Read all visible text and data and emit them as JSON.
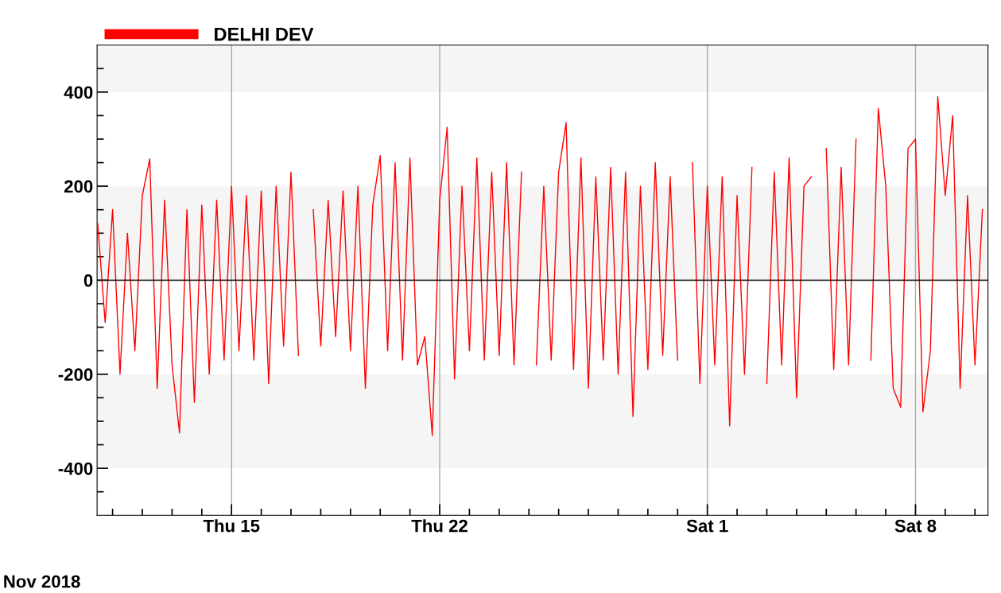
{
  "chart_data": {
    "type": "line",
    "x": [
      "2018-11-10T12:00",
      "2018-11-10T18:00",
      "2018-11-11T00:00",
      "2018-11-11T06:00",
      "2018-11-11T12:00",
      "2018-11-11T18:00",
      "2018-11-12T00:00",
      "2018-11-12T06:00",
      "2018-11-12T12:00",
      "2018-11-12T18:00",
      "2018-11-13T00:00",
      "2018-11-13T06:00",
      "2018-11-13T12:00",
      "2018-11-13T18:00",
      "2018-11-14T00:00",
      "2018-11-14T06:00",
      "2018-11-14T12:00",
      "2018-11-14T18:00",
      "2018-11-15T00:00",
      "2018-11-15T06:00",
      "2018-11-15T12:00",
      "2018-11-15T18:00",
      "2018-11-16T00:00",
      "2018-11-16T06:00",
      "2018-11-16T12:00",
      "2018-11-16T18:00",
      "2018-11-17T00:00",
      "2018-11-17T06:00",
      "2018-11-17T12:00",
      "2018-11-17T18:00",
      "2018-11-18T00:00",
      "2018-11-18T06:00",
      "2018-11-18T12:00",
      "2018-11-18T18:00",
      "2018-11-19T00:00",
      "2018-11-19T06:00",
      "2018-11-19T12:00",
      "2018-11-19T18:00",
      "2018-11-20T00:00",
      "2018-11-20T06:00",
      "2018-11-20T12:00",
      "2018-11-20T18:00",
      "2018-11-21T00:00",
      "2018-11-21T06:00",
      "2018-11-21T12:00",
      "2018-11-21T18:00",
      "2018-11-22T00:00",
      "2018-11-22T06:00",
      "2018-11-22T12:00",
      "2018-11-22T18:00",
      "2018-11-23T00:00",
      "2018-11-23T06:00",
      "2018-11-23T12:00",
      "2018-11-23T18:00",
      "2018-11-24T00:00",
      "2018-11-24T06:00",
      "2018-11-24T12:00",
      "2018-11-24T18:00",
      "2018-11-25T00:00",
      "2018-11-25T06:00",
      "2018-11-25T12:00",
      "2018-11-25T18:00",
      "2018-11-26T00:00",
      "2018-11-26T06:00",
      "2018-11-26T12:00",
      "2018-11-26T18:00",
      "2018-11-27T00:00",
      "2018-11-27T06:00",
      "2018-11-27T12:00",
      "2018-11-27T18:00",
      "2018-11-28T00:00",
      "2018-11-28T06:00",
      "2018-11-28T12:00",
      "2018-11-28T18:00",
      "2018-11-29T00:00",
      "2018-11-29T06:00",
      "2018-11-29T12:00",
      "2018-11-29T18:00",
      "2018-11-30T00:00",
      "2018-11-30T06:00",
      "2018-11-30T12:00",
      "2018-11-30T18:00",
      "2018-12-01T00:00",
      "2018-12-01T06:00",
      "2018-12-01T12:00",
      "2018-12-01T18:00",
      "2018-12-02T00:00",
      "2018-12-02T06:00",
      "2018-12-02T12:00",
      "2018-12-02T18:00",
      "2018-12-03T00:00",
      "2018-12-03T06:00",
      "2018-12-03T12:00",
      "2018-12-03T18:00",
      "2018-12-04T00:00",
      "2018-12-04T06:00",
      "2018-12-04T12:00",
      "2018-12-04T18:00",
      "2018-12-05T00:00",
      "2018-12-05T06:00",
      "2018-12-05T12:00",
      "2018-12-05T18:00",
      "2018-12-06T00:00",
      "2018-12-06T06:00",
      "2018-12-06T12:00",
      "2018-12-06T18:00",
      "2018-12-07T00:00",
      "2018-12-07T06:00",
      "2018-12-07T12:00",
      "2018-12-07T18:00",
      "2018-12-08T00:00",
      "2018-12-08T06:00",
      "2018-12-08T12:00",
      "2018-12-08T18:00",
      "2018-12-09T00:00",
      "2018-12-09T06:00",
      "2018-12-09T12:00",
      "2018-12-09T18:00",
      "2018-12-10T00:00",
      "2018-12-10T06:00"
    ],
    "series": [
      {
        "name": "DELHI DEV",
        "color": "#ff0000",
        "values": [
          120,
          -90,
          150,
          -200,
          100,
          -150,
          180,
          258,
          -230,
          170,
          -180,
          -325,
          150,
          -260,
          160,
          -200,
          170,
          -170,
          200,
          -150,
          180,
          -170,
          190,
          -220,
          200,
          -140,
          230,
          -160,
          null,
          150,
          -140,
          170,
          -120,
          190,
          -150,
          200,
          -230,
          160,
          265,
          -150,
          250,
          -170,
          260,
          -180,
          -120,
          -330,
          170,
          325,
          -210,
          200,
          -150,
          260,
          -170,
          230,
          -160,
          250,
          -180,
          230,
          null,
          -180,
          200,
          -170,
          230,
          335,
          -190,
          260,
          -230,
          220,
          -170,
          240,
          -200,
          230,
          -290,
          200,
          -190,
          250,
          -160,
          220,
          -170,
          null,
          250,
          -220,
          200,
          -180,
          220,
          -310,
          180,
          -200,
          240,
          null,
          -220,
          230,
          -180,
          260,
          -250,
          200,
          220,
          null,
          280,
          -190,
          240,
          -180,
          300,
          null,
          -170,
          365,
          200,
          -230,
          -270,
          280,
          300,
          -280,
          -150,
          390,
          180,
          350,
          -230,
          180,
          -180,
          150
        ]
      }
    ],
    "xlim": [
      "2018-11-10T11:30",
      "2018-12-10T10:30"
    ],
    "xticks": [
      {
        "value": "2018-11-11",
        "label": null
      },
      {
        "value": "2018-11-12",
        "label": null
      },
      {
        "value": "2018-11-13",
        "label": null
      },
      {
        "value": "2018-11-14",
        "label": null
      },
      {
        "value": "2018-11-15",
        "label": "Thu 15"
      },
      {
        "value": "2018-11-16",
        "label": null
      },
      {
        "value": "2018-11-17",
        "label": null
      },
      {
        "value": "2018-11-18",
        "label": null
      },
      {
        "value": "2018-11-19",
        "label": null
      },
      {
        "value": "2018-11-20",
        "label": null
      },
      {
        "value": "2018-11-21",
        "label": null
      },
      {
        "value": "2018-11-22",
        "label": "Thu 22"
      },
      {
        "value": "2018-11-23",
        "label": null
      },
      {
        "value": "2018-11-24",
        "label": null
      },
      {
        "value": "2018-11-25",
        "label": null
      },
      {
        "value": "2018-11-26",
        "label": null
      },
      {
        "value": "2018-11-27",
        "label": null
      },
      {
        "value": "2018-11-28",
        "label": null
      },
      {
        "value": "2018-11-29",
        "label": null
      },
      {
        "value": "2018-11-30",
        "label": null
      },
      {
        "value": "2018-12-01",
        "label": "Sat 1"
      },
      {
        "value": "2018-12-02",
        "label": null
      },
      {
        "value": "2018-12-03",
        "label": null
      },
      {
        "value": "2018-12-04",
        "label": null
      },
      {
        "value": "2018-12-05",
        "label": null
      },
      {
        "value": "2018-12-06",
        "label": null
      },
      {
        "value": "2018-12-07",
        "label": null
      },
      {
        "value": "2018-12-08",
        "label": "Sat 8"
      },
      {
        "value": "2018-12-09",
        "label": null
      },
      {
        "value": "2018-12-10",
        "label": null
      }
    ],
    "ylim": [
      -500,
      500
    ],
    "yticks": [
      {
        "value": -450,
        "label": null
      },
      -400,
      {
        "value": -350,
        "label": null
      },
      {
        "value": -300,
        "label": null
      },
      {
        "value": -250,
        "label": null
      },
      -200,
      {
        "value": -150,
        "label": null
      },
      {
        "value": -100,
        "label": null
      },
      {
        "value": -50,
        "label": null
      },
      0,
      {
        "value": 50,
        "label": null
      },
      {
        "value": 100,
        "label": null
      },
      {
        "value": 150,
        "label": null
      },
      200,
      {
        "value": 250,
        "label": null
      },
      {
        "value": 300,
        "label": null
      },
      {
        "value": 350,
        "label": null
      },
      400,
      {
        "value": 450,
        "label": null
      }
    ],
    "bands": [
      {
        "axis": "y",
        "from": 400,
        "to": 500,
        "color": "#f5f5f5"
      },
      {
        "axis": "y",
        "from": 0,
        "to": 200,
        "color": "#f5f5f5"
      },
      {
        "axis": "y",
        "from": -400,
        "to": -200,
        "color": "#f5f5f5"
      }
    ],
    "ref_lines": [
      {
        "axis": "y",
        "value": 0,
        "color": "#000000"
      }
    ],
    "grid": "x",
    "legend": "top left",
    "annotations": [
      "Nov 2018"
    ]
  }
}
